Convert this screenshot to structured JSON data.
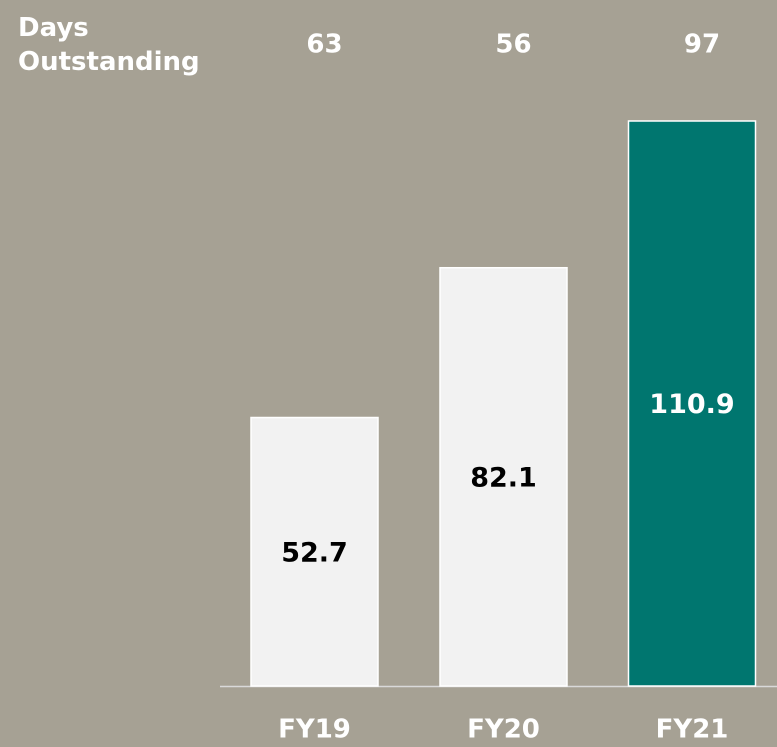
{
  "chart_data": {
    "type": "bar",
    "categories": [
      "FY19",
      "FY20",
      "FY21"
    ],
    "values": [
      52.7,
      82.1,
      110.9
    ],
    "colors": [
      "#f2f2f2",
      "#f2f2f2",
      "#00766f"
    ],
    "days_outstanding": {
      "label": "Days Outstanding",
      "values": [
        63,
        56,
        97
      ]
    }
  }
}
